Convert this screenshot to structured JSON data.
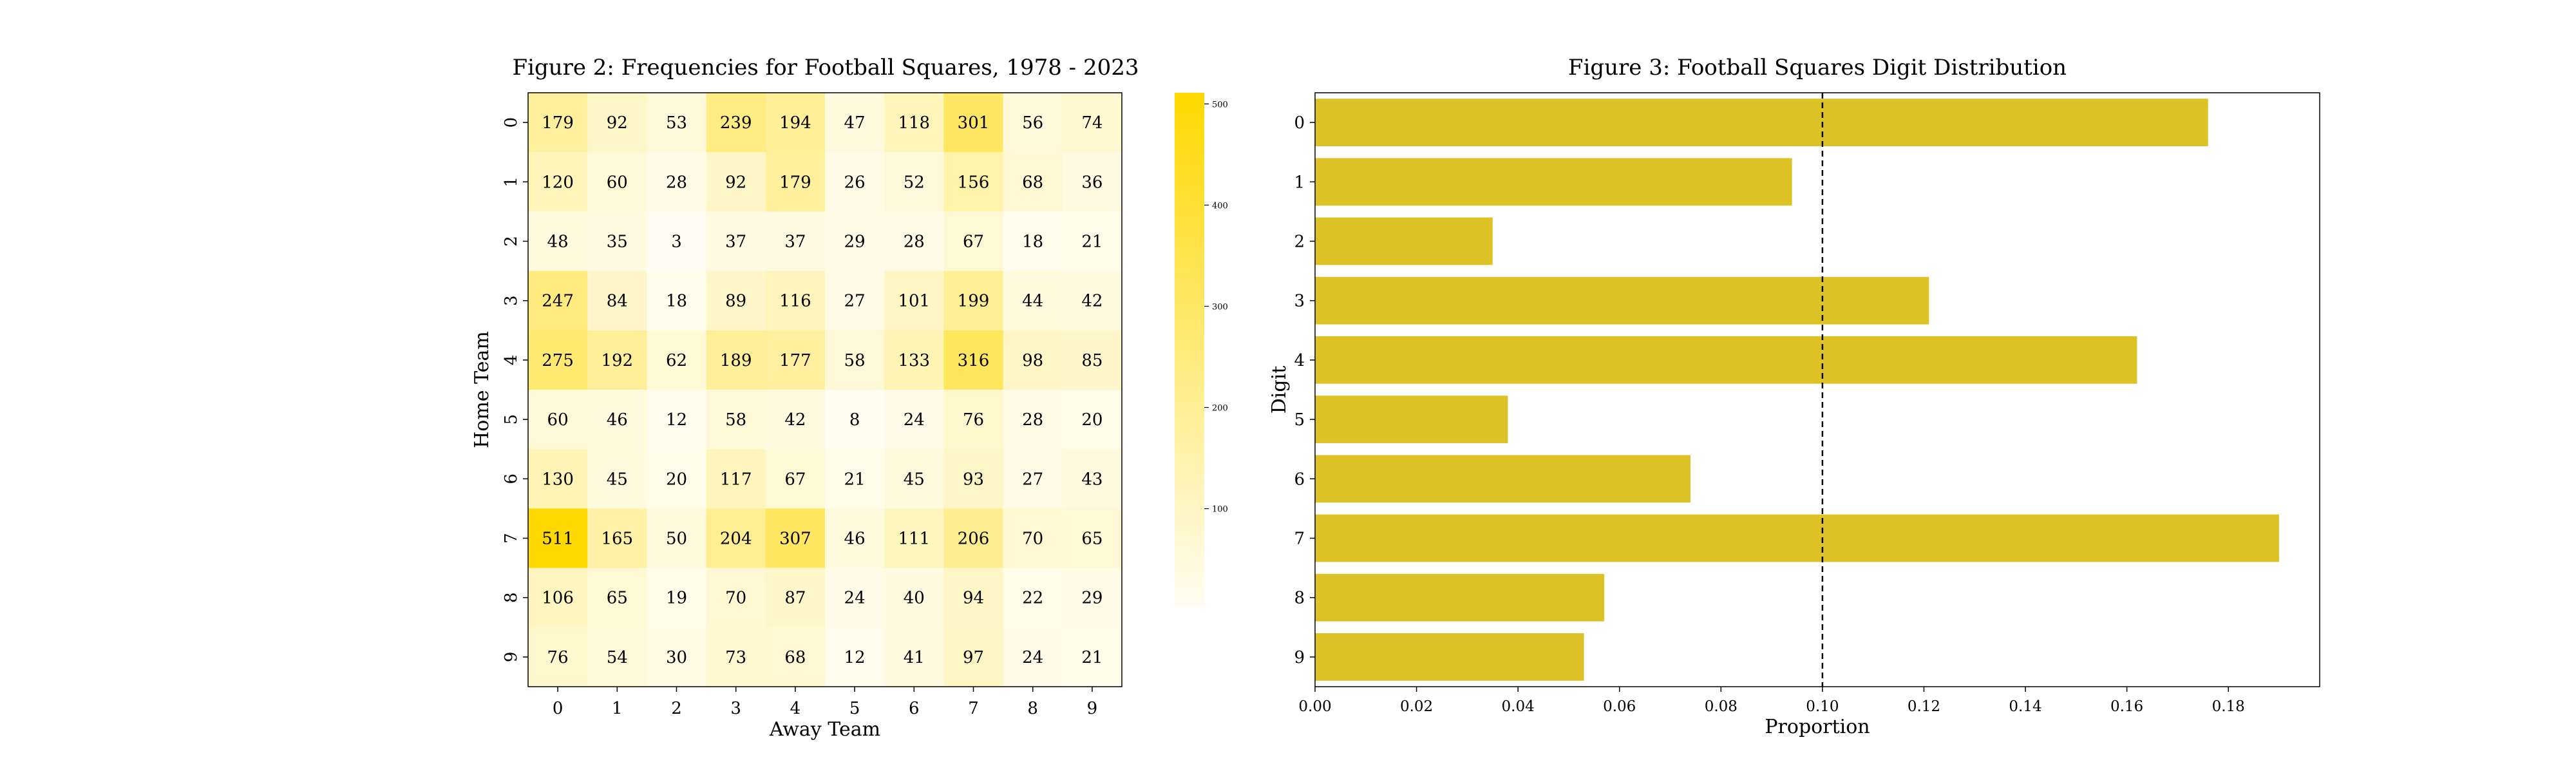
{
  "colors": {
    "cmap_low": "#fffdf2",
    "cmap_high": "#ffd800",
    "bar": "#dcc224",
    "ref_line": "#000000"
  },
  "chart_data": [
    {
      "type": "heatmap",
      "title": "Figure 2: Frequencies for Football Squares, 1978 - 2023",
      "xlabel": "Away Team",
      "ylabel": "Home Team",
      "x_categories": [
        "0",
        "1",
        "2",
        "3",
        "4",
        "5",
        "6",
        "7",
        "8",
        "9"
      ],
      "y_categories": [
        "0",
        "1",
        "2",
        "3",
        "4",
        "5",
        "6",
        "7",
        "8",
        "9"
      ],
      "values": [
        [
          179,
          92,
          53,
          239,
          194,
          47,
          118,
          301,
          56,
          74
        ],
        [
          120,
          60,
          28,
          92,
          179,
          26,
          52,
          156,
          68,
          36
        ],
        [
          48,
          35,
          3,
          37,
          37,
          29,
          28,
          67,
          18,
          21
        ],
        [
          247,
          84,
          18,
          89,
          116,
          27,
          101,
          199,
          44,
          42
        ],
        [
          275,
          192,
          62,
          189,
          177,
          58,
          133,
          316,
          98,
          85
        ],
        [
          60,
          46,
          12,
          58,
          42,
          8,
          24,
          76,
          28,
          20
        ],
        [
          130,
          45,
          20,
          117,
          67,
          21,
          45,
          93,
          27,
          43
        ],
        [
          511,
          165,
          50,
          204,
          307,
          46,
          111,
          206,
          70,
          65
        ],
        [
          106,
          65,
          19,
          70,
          87,
          24,
          40,
          94,
          22,
          29
        ],
        [
          76,
          54,
          30,
          73,
          68,
          12,
          41,
          97,
          24,
          21
        ]
      ],
      "colorbar": {
        "range": [
          3,
          511
        ],
        "ticks": [
          100,
          200,
          300,
          400,
          500
        ]
      }
    },
    {
      "type": "bar",
      "orientation": "horizontal",
      "title": "Figure 3: Football Squares Digit Distribution",
      "xlabel": "Proportion",
      "ylabel": "Digit",
      "categories": [
        "0",
        "1",
        "2",
        "3",
        "4",
        "5",
        "6",
        "7",
        "8",
        "9"
      ],
      "values": [
        0.176,
        0.094,
        0.035,
        0.121,
        0.162,
        0.038,
        0.074,
        0.19,
        0.057,
        0.053
      ],
      "xlim": [
        0,
        0.198
      ],
      "xticks": [
        "0.00",
        "0.02",
        "0.04",
        "0.06",
        "0.08",
        "0.10",
        "0.12",
        "0.14",
        "0.16",
        "0.18"
      ],
      "reference_line": {
        "x": 0.1,
        "style": "dashed"
      }
    }
  ]
}
